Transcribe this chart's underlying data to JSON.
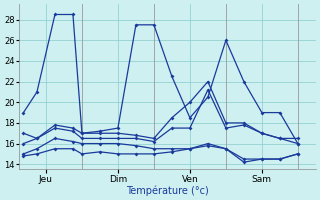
{
  "xlabel": "Température (°c)",
  "xlim": [
    0,
    33
  ],
  "ylim": [
    13.5,
    29.5
  ],
  "yticks": [
    14,
    16,
    18,
    20,
    22,
    24,
    26,
    28
  ],
  "xtick_positions": [
    3,
    11,
    19,
    27
  ],
  "xtick_labels": [
    "Jeu",
    "Dim",
    "Ven",
    "Sam"
  ],
  "xvlines": [
    7,
    15,
    23,
    31
  ],
  "background_color": "#cef0f0",
  "grid_color": "#88cccc",
  "line_color": "#1a3a9c",
  "lines": [
    {
      "x": [
        0.5,
        2,
        4,
        6,
        7,
        9,
        11,
        13,
        15,
        17,
        19,
        21,
        23,
        25,
        27,
        29,
        31
      ],
      "y": [
        19.0,
        21.0,
        28.5,
        28.5,
        17.0,
        17.2,
        17.5,
        27.5,
        27.5,
        22.5,
        18.5,
        20.5,
        26.0,
        22.0,
        19.0,
        19.0,
        16.0
      ]
    },
    {
      "x": [
        0.5,
        2,
        4,
        6,
        7,
        9,
        11,
        13,
        15,
        17,
        19,
        21,
        23,
        25,
        27,
        29,
        31
      ],
      "y": [
        17.0,
        16.5,
        17.5,
        17.2,
        16.5,
        16.5,
        16.5,
        16.5,
        16.2,
        17.5,
        17.5,
        21.2,
        17.5,
        17.8,
        17.0,
        16.5,
        16.0
      ]
    },
    {
      "x": [
        0.5,
        2,
        4,
        6,
        7,
        9,
        11,
        13,
        15,
        17,
        19,
        21,
        23,
        25,
        27,
        29,
        31
      ],
      "y": [
        15.0,
        15.5,
        16.5,
        16.2,
        16.0,
        16.0,
        16.0,
        15.8,
        15.5,
        15.5,
        15.5,
        16.0,
        15.5,
        14.5,
        14.5,
        14.5,
        15.0
      ]
    },
    {
      "x": [
        0.5,
        2,
        4,
        6,
        7,
        9,
        11,
        13,
        15,
        17,
        19,
        21,
        23,
        25,
        27,
        29,
        31
      ],
      "y": [
        16.0,
        16.5,
        17.8,
        17.5,
        17.0,
        17.0,
        17.0,
        16.8,
        16.5,
        18.5,
        20.0,
        22.0,
        18.0,
        18.0,
        17.0,
        16.5,
        16.5
      ]
    },
    {
      "x": [
        0.5,
        2,
        4,
        6,
        7,
        9,
        11,
        13,
        15,
        17,
        19,
        21,
        23,
        25,
        27,
        29,
        31
      ],
      "y": [
        14.8,
        15.0,
        15.5,
        15.5,
        15.0,
        15.2,
        15.0,
        15.0,
        15.0,
        15.2,
        15.5,
        15.8,
        15.5,
        14.2,
        14.5,
        14.5,
        15.0
      ]
    }
  ]
}
